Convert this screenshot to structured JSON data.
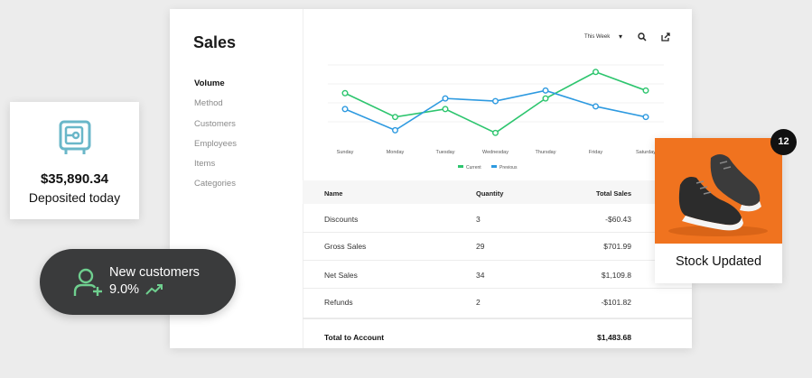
{
  "sales": {
    "title": "Sales",
    "nav": [
      "Volume",
      "Method",
      "Customers",
      "Employees",
      "Items",
      "Categories"
    ],
    "active_nav": "Volume",
    "range": "This Week"
  },
  "chart_data": {
    "type": "line",
    "categories": [
      "Sunday",
      "Monday",
      "Tuesday",
      "Wednesday",
      "Thursday",
      "Friday",
      "Saturday"
    ],
    "series": [
      {
        "name": "Current",
        "color": "#2dc56e",
        "values": [
          10,
          5.5,
          7,
          2.5,
          9,
          14,
          10.5
        ]
      },
      {
        "name": "Previous",
        "color": "#2e9ae0",
        "values": [
          7,
          3,
          9,
          8.5,
          10.5,
          7.5,
          5.5
        ]
      }
    ],
    "ylim": [
      0,
      16
    ],
    "grid": true,
    "legend": "bottom"
  },
  "table": {
    "headers": {
      "name": "Name",
      "quantity": "Quantity",
      "total": "Total Sales"
    },
    "rows": [
      {
        "name": "Discounts",
        "quantity": "3",
        "total": "-$60.43"
      },
      {
        "name": "Gross Sales",
        "quantity": "29",
        "total": "$701.99"
      },
      {
        "name": "Net Sales",
        "quantity": "34",
        "total": "$1,109.8"
      },
      {
        "name": "Refunds",
        "quantity": "2",
        "total": "-$101.82"
      }
    ],
    "footer": {
      "label": "Total to Account",
      "total": "$1,483.68"
    }
  },
  "deposit": {
    "amount": "$35,890.34",
    "label": "Deposited today",
    "icon": "safe-icon",
    "icon_color": "#6ab7c9"
  },
  "customers": {
    "title": "New customers",
    "value": "9.0%",
    "icon": "user-add-icon",
    "accent": "#6fcf8f"
  },
  "stock": {
    "label": "Stock Updated",
    "badge": "12",
    "image_bg": "#f0731f"
  }
}
